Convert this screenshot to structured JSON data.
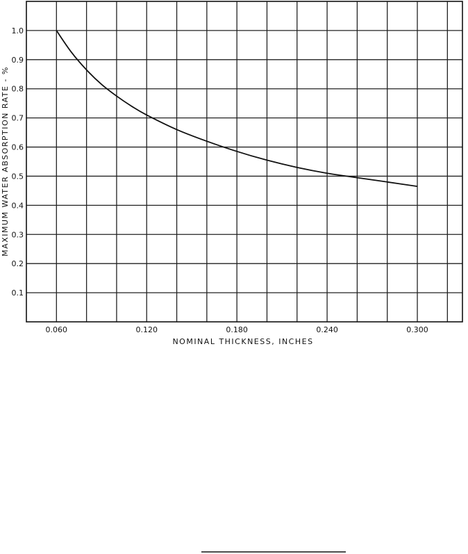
{
  "chart_data": {
    "type": "line",
    "xlabel": "NOMINAL  THICKNESS, INCHES",
    "ylabel": "MAXIMUM  WATER  ABSORPTION  RATE  -  %",
    "xlim": [
      0.04,
      0.33
    ],
    "ylim": [
      0.0,
      1.1
    ],
    "x_ticks": [
      0.06,
      0.12,
      0.18,
      0.24,
      0.3
    ],
    "x_tick_labels": [
      "0.060",
      "0.120",
      "0.180",
      "0.240",
      "0.300"
    ],
    "y_ticks": [
      0.1,
      0.2,
      0.3,
      0.4,
      0.5,
      0.6,
      0.7,
      0.8,
      0.9,
      1.0
    ],
    "y_tick_labels": [
      "0.1",
      "0.2",
      "0.3",
      "0.4",
      "0.5",
      "0.6",
      "0.7",
      "0.8",
      "0.9",
      "1.0"
    ],
    "grid": true,
    "series": [
      {
        "x": [
          0.06,
          0.07,
          0.08,
          0.09,
          0.1,
          0.11,
          0.12,
          0.14,
          0.16,
          0.18,
          0.2,
          0.22,
          0.24,
          0.26,
          0.28,
          0.3
        ],
        "y": [
          1.0,
          0.925,
          0.865,
          0.815,
          0.775,
          0.74,
          0.71,
          0.66,
          0.62,
          0.585,
          0.555,
          0.53,
          0.51,
          0.495,
          0.48,
          0.465
        ]
      }
    ]
  }
}
